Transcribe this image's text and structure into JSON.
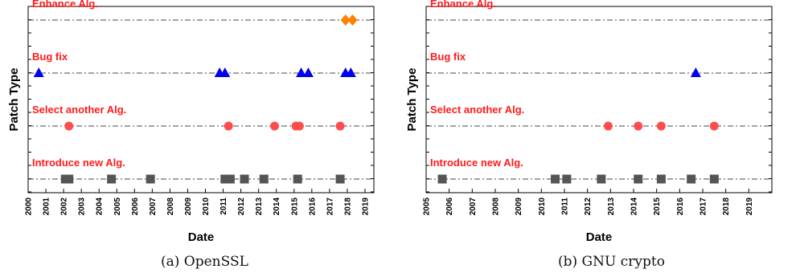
{
  "figure": {
    "captions": [
      "(a) OpenSSL",
      "(b) GNU crypto"
    ]
  },
  "colors": {
    "category_label": "#ff1a1a",
    "Enhance Alg.": "#ff8000",
    "Bug fix": "#0000ee",
    "Select another Alg.": "#ff4d4d",
    "Introduce new Alg.": "#555555",
    "guide_line": "#444444"
  },
  "chart_data": [
    {
      "type": "scatter",
      "title": "",
      "xlabel": "Date",
      "ylabel": "Patch Type",
      "xlim": [
        2000,
        2019.5
      ],
      "x_ticks": [
        2000,
        2001,
        2002,
        2003,
        2004,
        2005,
        2006,
        2007,
        2008,
        2009,
        2010,
        2011,
        2012,
        2013,
        2014,
        2015,
        2016,
        2017,
        2018,
        2019
      ],
      "categories": [
        "Introduce new Alg.",
        "Select another Alg.",
        "Bug fix",
        "Enhance Alg."
      ],
      "grid": false,
      "series": [
        {
          "name": "Enhance Alg.",
          "marker": "diamond",
          "x": [
            2017.9,
            2018.3
          ]
        },
        {
          "name": "Bug fix",
          "marker": "triangle",
          "x": [
            2000.6,
            2010.8,
            2011.1,
            2015.4,
            2015.8,
            2017.9,
            2018.2
          ]
        },
        {
          "name": "Select another Alg.",
          "marker": "circle",
          "x": [
            2002.3,
            2011.3,
            2013.9,
            2015.1,
            2015.3,
            2017.6
          ]
        },
        {
          "name": "Introduce new Alg.",
          "marker": "square",
          "x": [
            2002.1,
            2002.3,
            2004.7,
            2006.9,
            2011.1,
            2011.4,
            2012.2,
            2013.3,
            2015.2,
            2017.6
          ]
        }
      ]
    },
    {
      "type": "scatter",
      "title": "",
      "xlabel": "Date",
      "ylabel": "Patch Type",
      "xlim": [
        2005,
        2020
      ],
      "x_ticks": [
        2005,
        2006,
        2007,
        2008,
        2009,
        2010,
        2011,
        2012,
        2013,
        2014,
        2015,
        2016,
        2017,
        2018,
        2019
      ],
      "categories": [
        "Introduce new Alg.",
        "Select another Alg.",
        "Bug fix",
        "Enhance Alg."
      ],
      "grid": false,
      "series": [
        {
          "name": "Enhance Alg.",
          "marker": "diamond",
          "x": []
        },
        {
          "name": "Bug fix",
          "marker": "triangle",
          "x": [
            2016.7
          ]
        },
        {
          "name": "Select another Alg.",
          "marker": "circle",
          "x": [
            2012.9,
            2014.2,
            2015.2,
            2017.5
          ]
        },
        {
          "name": "Introduce new Alg.",
          "marker": "square",
          "x": [
            2005.7,
            2010.6,
            2011.1,
            2012.6,
            2014.2,
            2015.2,
            2016.5,
            2017.5
          ]
        }
      ]
    }
  ]
}
